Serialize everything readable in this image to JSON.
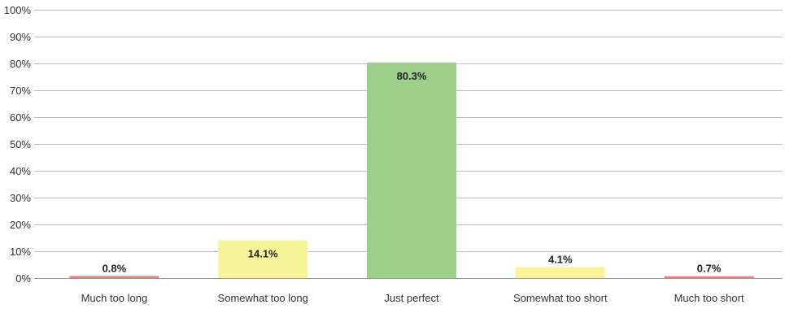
{
  "chart_data": {
    "type": "bar",
    "categories": [
      "Much too long",
      "Somewhat too long",
      "Just perfect",
      "Somewhat too short",
      "Much too short"
    ],
    "values": [
      0.8,
      14.1,
      80.3,
      4.1,
      0.7
    ],
    "data_labels": [
      "0.8%",
      "14.1%",
      "80.3%",
      "4.1%",
      "0.7%"
    ],
    "bar_colors": [
      "#f08080",
      "#f7f59a",
      "#9dd08a",
      "#f7f59a",
      "#f08080"
    ],
    "y_ticks": [
      "0%",
      "10%",
      "20%",
      "30%",
      "40%",
      "50%",
      "60%",
      "70%",
      "80%",
      "90%",
      "100%"
    ],
    "ylim": [
      0,
      100
    ],
    "grid": true,
    "title": "",
    "xlabel": "",
    "ylabel": ""
  }
}
